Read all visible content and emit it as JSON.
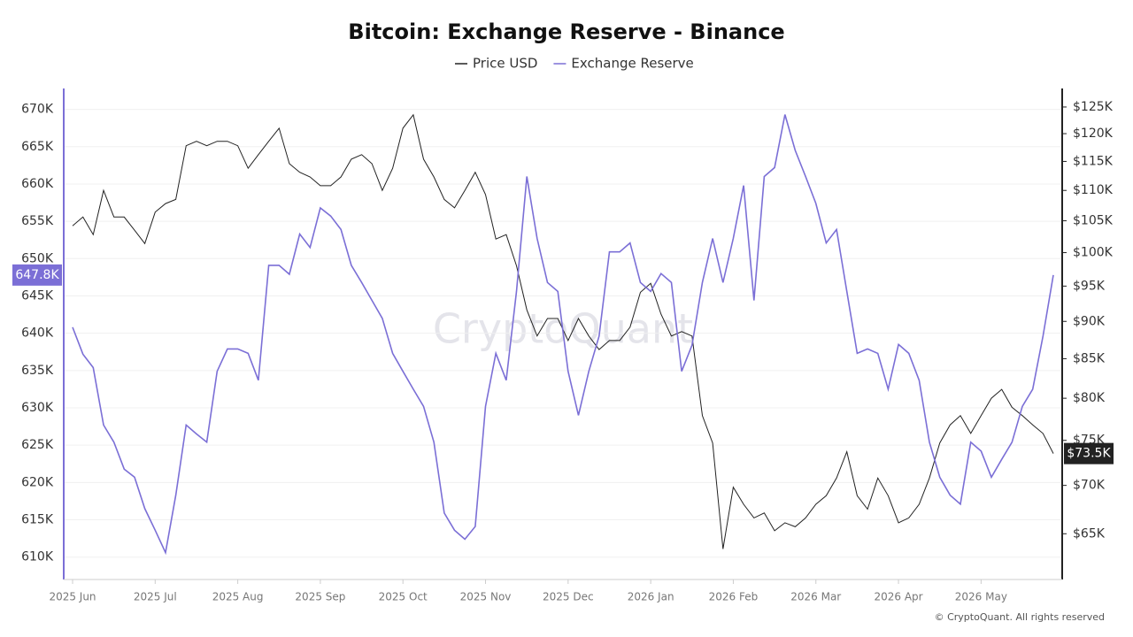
{
  "chart_data": {
    "type": "line",
    "title": "Bitcoin: Exchange Reserve - Binance",
    "watermark": "CryptoQuant",
    "footer": "© CryptoQuant. All rights reserved",
    "categories": [
      "2025 Jun",
      null,
      null,
      null,
      null,
      null,
      null,
      null,
      "2025 Jul",
      null,
      null,
      null,
      null,
      null,
      null,
      null,
      "2025 Aug",
      null,
      null,
      null,
      null,
      null,
      null,
      null,
      "2025 Sep",
      null,
      null,
      null,
      null,
      null,
      null,
      null,
      "2025 Oct",
      null,
      null,
      null,
      null,
      null,
      null,
      null,
      "2025 Nov",
      null,
      null,
      null,
      null,
      null,
      null,
      null,
      "2025 Dec",
      null,
      null,
      null,
      null,
      null,
      null,
      null,
      "2026 Jan",
      null,
      null,
      null,
      null,
      null,
      null,
      null,
      "2026 Feb",
      null,
      null,
      null,
      null,
      null,
      null,
      null,
      "2026 Mar",
      null,
      null,
      null,
      null,
      null,
      null,
      null,
      "2026 Apr",
      null,
      null,
      null,
      null,
      null,
      null,
      null,
      "2026 May",
      null,
      null,
      null,
      null,
      null,
      null,
      null
    ],
    "series": [
      {
        "name": "Price USD",
        "color": "#222222",
        "axis": "y2",
        "current_label": "$73.5K",
        "values": [
          104200,
          105600,
          102800,
          110000,
          105600,
          105600,
          103500,
          101400,
          106400,
          107800,
          108500,
          117800,
          118600,
          117800,
          118600,
          118600,
          117800,
          113800,
          116200,
          118600,
          121000,
          114600,
          113100,
          112300,
          110800,
          110800,
          112300,
          115400,
          116200,
          114600,
          110000,
          113800,
          121000,
          123500,
          115400,
          112300,
          108500,
          107100,
          110000,
          113100,
          109300,
          102100,
          102800,
          98000,
          91600,
          88000,
          90400,
          90400,
          87400,
          90400,
          88000,
          86200,
          87400,
          87400,
          89200,
          94100,
          95400,
          91000,
          88000,
          88600,
          88000,
          77900,
          74700,
          63500,
          69800,
          68000,
          66600,
          67100,
          65300,
          66100,
          65700,
          66600,
          68000,
          68900,
          70800,
          73700,
          68900,
          67500,
          70800,
          68900,
          66100,
          66600,
          68000,
          70800,
          74700,
          76800,
          77900,
          75800,
          77900,
          80000,
          81100,
          78900,
          77900,
          76800,
          75800,
          73500
        ]
      },
      {
        "name": "Exchange Reserve",
        "color": "#7b6fd6",
        "axis": "y",
        "current_label": "647.8K",
        "values": [
          640800,
          637200,
          635400,
          627700,
          625400,
          621800,
          620700,
          616500,
          613600,
          610600,
          618300,
          627700,
          626500,
          625400,
          634900,
          637900,
          637900,
          637300,
          633700,
          649100,
          649100,
          647900,
          653300,
          651500,
          656800,
          655700,
          653900,
          649100,
          646800,
          644400,
          642000,
          637300,
          634900,
          632500,
          630200,
          625400,
          615900,
          613600,
          612400,
          614100,
          630200,
          637300,
          633700,
          645600,
          661000,
          652700,
          646800,
          645600,
          634900,
          629000,
          634900,
          639600,
          650900,
          650900,
          652100,
          646800,
          645600,
          648000,
          646800,
          634900,
          638400,
          646800,
          652700,
          646800,
          652700,
          659800,
          644400,
          661000,
          662200,
          669300,
          664500,
          661000,
          657400,
          652100,
          653900,
          645600,
          637300,
          637900,
          637300,
          632500,
          638500,
          637300,
          633700,
          625400,
          620700,
          618300,
          617100,
          625400,
          624200,
          620700,
          623100,
          625400,
          630200,
          632500,
          639600,
          647800
        ]
      }
    ],
    "ylim": [
      607000,
      672800
    ],
    "yticks": [
      {
        "value": 610000,
        "label": "610K"
      },
      {
        "value": 615000,
        "label": "615K"
      },
      {
        "value": 620000,
        "label": "620K"
      },
      {
        "value": 625000,
        "label": "625K"
      },
      {
        "value": 630000,
        "label": "630K"
      },
      {
        "value": 635000,
        "label": "635K"
      },
      {
        "value": 640000,
        "label": "640K"
      },
      {
        "value": 645000,
        "label": "645K"
      },
      {
        "value": 650000,
        "label": "650K"
      },
      {
        "value": 655000,
        "label": "655K"
      },
      {
        "value": 660000,
        "label": "660K"
      },
      {
        "value": 665000,
        "label": "665K"
      },
      {
        "value": 670000,
        "label": "670K"
      }
    ],
    "y2lim": [
      60600,
      128600
    ],
    "y2_log": true,
    "y2ticks": [
      {
        "value": 65000,
        "label": "$65K"
      },
      {
        "value": 70000,
        "label": "$70K"
      },
      {
        "value": 75000,
        "label": "$75K"
      },
      {
        "value": 80000,
        "label": "$80K"
      },
      {
        "value": 85000,
        "label": "$85K"
      },
      {
        "value": 90000,
        "label": "$90K"
      },
      {
        "value": 95000,
        "label": "$95K"
      },
      {
        "value": 100000,
        "label": "$100K"
      },
      {
        "value": 105000,
        "label": "$105K"
      },
      {
        "value": 110000,
        "label": "$110K"
      },
      {
        "value": 115000,
        "label": "$115K"
      },
      {
        "value": 120000,
        "label": "$120K"
      },
      {
        "value": 125000,
        "label": "$125K"
      }
    ],
    "grid": true
  }
}
